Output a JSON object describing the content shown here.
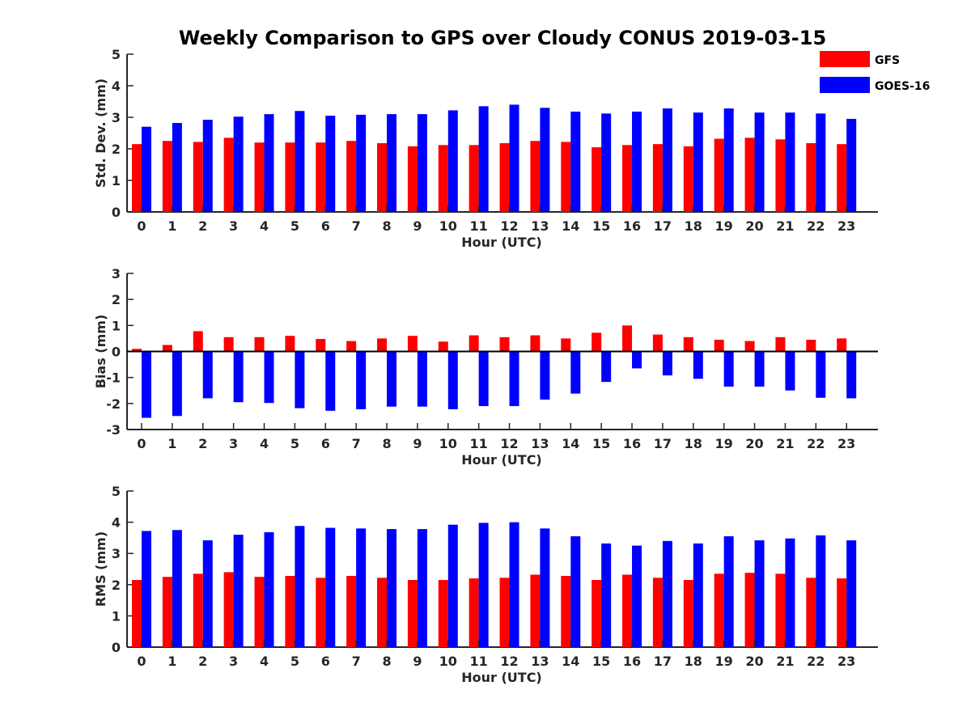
{
  "title": "Weekly Comparison to GPS over Cloudy CONUS 2019-03-15",
  "colors": {
    "GFS": "#ff0000",
    "GOES-16": "#0000ff",
    "axis": "#262626"
  },
  "legend": [
    {
      "name": "GFS",
      "color": "#ff0000"
    },
    {
      "name": "GOES-16",
      "color": "#0000ff"
    }
  ],
  "chart_data": [
    {
      "type": "bar",
      "xlabel": "Hour (UTC)",
      "ylabel": "Std. Dev. (mm)",
      "ylim": [
        0,
        5
      ],
      "yticks": [
        0,
        1,
        2,
        3,
        4,
        5
      ],
      "categories": [
        "0",
        "1",
        "2",
        "3",
        "4",
        "5",
        "6",
        "7",
        "8",
        "9",
        "10",
        "11",
        "12",
        "13",
        "14",
        "15",
        "16",
        "17",
        "18",
        "19",
        "20",
        "21",
        "22",
        "23"
      ],
      "legend_position": "top-right",
      "series": [
        {
          "name": "GFS",
          "values": [
            2.15,
            2.25,
            2.22,
            2.35,
            2.2,
            2.2,
            2.2,
            2.25,
            2.18,
            2.08,
            2.12,
            2.12,
            2.18,
            2.25,
            2.22,
            2.05,
            2.12,
            2.15,
            2.08,
            2.32,
            2.35,
            2.3,
            2.18,
            2.15
          ]
        },
        {
          "name": "GOES-16",
          "values": [
            2.7,
            2.82,
            2.92,
            3.02,
            3.1,
            3.2,
            3.05,
            3.08,
            3.1,
            3.1,
            3.22,
            3.35,
            3.4,
            3.3,
            3.18,
            3.12,
            3.18,
            3.28,
            3.15,
            3.28,
            3.15,
            3.15,
            3.12,
            2.95
          ]
        }
      ]
    },
    {
      "type": "bar",
      "xlabel": "Hour (UTC)",
      "ylabel": "Bias (mm)",
      "ylim": [
        -3,
        3
      ],
      "yticks": [
        -3,
        -2,
        -1,
        0,
        1,
        2,
        3
      ],
      "zero_line": true,
      "categories": [
        "0",
        "1",
        "2",
        "3",
        "4",
        "5",
        "6",
        "7",
        "8",
        "9",
        "10",
        "11",
        "12",
        "13",
        "14",
        "15",
        "16",
        "17",
        "18",
        "19",
        "20",
        "21",
        "22",
        "23"
      ],
      "series": [
        {
          "name": "GFS",
          "values": [
            0.1,
            0.25,
            0.78,
            0.55,
            0.55,
            0.6,
            0.48,
            0.4,
            0.5,
            0.6,
            0.38,
            0.62,
            0.55,
            0.62,
            0.5,
            0.72,
            1.0,
            0.65,
            0.55,
            0.45,
            0.4,
            0.55,
            0.45,
            0.5
          ]
        },
        {
          "name": "GOES-16",
          "values": [
            -2.55,
            -2.48,
            -1.8,
            -1.95,
            -1.98,
            -2.18,
            -2.28,
            -2.22,
            -2.12,
            -2.12,
            -2.22,
            -2.1,
            -2.1,
            -1.85,
            -1.62,
            -1.17,
            -0.65,
            -0.92,
            -1.05,
            -1.35,
            -1.35,
            -1.5,
            -1.78,
            -1.8
          ]
        }
      ]
    },
    {
      "type": "bar",
      "xlabel": "Hour (UTC)",
      "ylabel": "RMS (mm)",
      "ylim": [
        0,
        5
      ],
      "yticks": [
        0,
        1,
        2,
        3,
        4,
        5
      ],
      "categories": [
        "0",
        "1",
        "2",
        "3",
        "4",
        "5",
        "6",
        "7",
        "8",
        "9",
        "10",
        "11",
        "12",
        "13",
        "14",
        "15",
        "16",
        "17",
        "18",
        "19",
        "20",
        "21",
        "22",
        "23"
      ],
      "series": [
        {
          "name": "GFS",
          "values": [
            2.15,
            2.25,
            2.35,
            2.4,
            2.25,
            2.28,
            2.22,
            2.28,
            2.22,
            2.15,
            2.15,
            2.2,
            2.22,
            2.32,
            2.28,
            2.15,
            2.32,
            2.22,
            2.15,
            2.35,
            2.38,
            2.35,
            2.22,
            2.2
          ]
        },
        {
          "name": "GOES-16",
          "values": [
            3.72,
            3.75,
            3.42,
            3.6,
            3.68,
            3.88,
            3.82,
            3.8,
            3.78,
            3.78,
            3.92,
            3.98,
            4.0,
            3.8,
            3.55,
            3.32,
            3.25,
            3.4,
            3.32,
            3.55,
            3.42,
            3.48,
            3.58,
            3.42
          ]
        }
      ]
    }
  ]
}
